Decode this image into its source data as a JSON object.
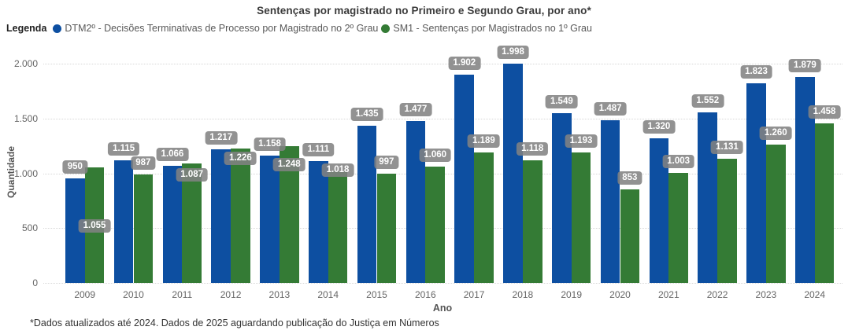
{
  "title": "Sentenças por magistrado no Primeiro e Segundo Grau, por ano*",
  "legend": {
    "label": "Legenda",
    "items": [
      {
        "name": "DTM2º - Decisões Terminativas de Processo por Magistrado no 2º Grau",
        "color": "#0d4fa1"
      },
      {
        "name": "SM1 - Sentenças por Magistrados no 1º Grau",
        "color": "#347b35"
      }
    ]
  },
  "footer": "*Dados atualizados até 2024. Dados de 2025 aguardando publicação do Justiça em Números",
  "chart_data": {
    "type": "bar",
    "title": "Sentenças por magistrado no Primeiro e Segundo Grau, por ano*",
    "xlabel": "Ano",
    "ylabel": "Quantidade",
    "ylim": [
      0,
      2000
    ],
    "yticks": [
      0,
      500,
      1000,
      1500,
      2000
    ],
    "ytick_labels": [
      "0",
      "500",
      "1.000",
      "1.500",
      "2.000"
    ],
    "grid": "horizontal-dotted",
    "legend_position": "top-left",
    "data_labels": true,
    "categories": [
      "2009",
      "2010",
      "2011",
      "2012",
      "2013",
      "2014",
      "2015",
      "2016",
      "2017",
      "2018",
      "2019",
      "2020",
      "2021",
      "2022",
      "2023",
      "2024"
    ],
    "series": [
      {
        "name": "DTM2º - Decisões Terminativas de Processo por Magistrado no 2º Grau",
        "color": "#0d4fa1",
        "values": [
          950,
          1115,
          1066,
          1217,
          1158,
          1111,
          1435,
          1477,
          1902,
          1998,
          1549,
          1487,
          1320,
          1552,
          1823,
          1879
        ]
      },
      {
        "name": "SM1 - Sentenças por Magistrados no 1º Grau",
        "color": "#347b35",
        "values": [
          1055,
          987,
          1087,
          1226,
          1248,
          1018,
          997,
          1060,
          1189,
          1118,
          1193,
          853,
          1003,
          1131,
          1260,
          1458
        ]
      }
    ]
  }
}
